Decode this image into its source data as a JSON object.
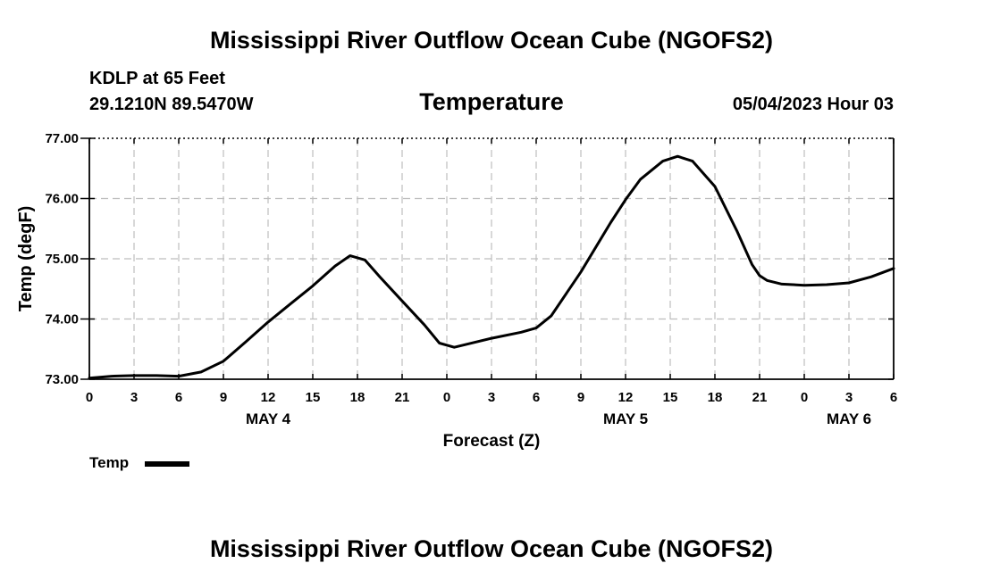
{
  "header": {
    "title": "Mississippi River Outflow Ocean Cube (NGOFS2)",
    "station_name": "KDLP at 65 Feet",
    "station_coords": "29.1210N  89.5470W",
    "date_hour": "05/04/2023 Hour 03"
  },
  "footer": {
    "title": "Mississippi River Outflow Ocean Cube (NGOFS2)"
  },
  "chart_data": {
    "type": "line",
    "title": "Temperature",
    "xlabel": "Forecast (Z)",
    "ylabel": "Temp (degF)",
    "xlim": [
      0,
      54
    ],
    "ylim": [
      73.0,
      77.0
    ],
    "x_tick_values": [
      0,
      3,
      6,
      9,
      12,
      15,
      18,
      21,
      24,
      27,
      30,
      33,
      36,
      39,
      42,
      45,
      48,
      51,
      54
    ],
    "x_tick_labels": [
      "0",
      "3",
      "6",
      "9",
      "12",
      "15",
      "18",
      "21",
      "0",
      "3",
      "6",
      "9",
      "12",
      "15",
      "18",
      "21",
      "0",
      "3",
      "6"
    ],
    "y_tick_values": [
      73.0,
      74.0,
      75.0,
      76.0,
      77.0
    ],
    "y_tick_labels": [
      "73.00",
      "74.00",
      "75.00",
      "76.00",
      "77.00"
    ],
    "date_labels": [
      {
        "label": "MAY 4",
        "x": 12
      },
      {
        "label": "MAY 5",
        "x": 36
      },
      {
        "label": "MAY 6",
        "x": 51
      }
    ],
    "grid": true,
    "legend": [
      {
        "name": "Temp",
        "color": "#000000",
        "position": "below-left"
      }
    ],
    "series": [
      {
        "name": "Temp",
        "color": "#000000",
        "x": [
          0,
          1.5,
          3,
          4.5,
          6,
          7.5,
          9,
          10.5,
          12,
          13.5,
          15,
          16.5,
          17.5,
          18.5,
          19.5,
          21,
          22.5,
          23.5,
          24.5,
          27,
          29,
          30,
          31,
          33,
          35,
          36,
          37,
          38.5,
          39.5,
          40.5,
          42,
          43.5,
          44.5,
          45,
          45.5,
          46.5,
          48,
          49.5,
          51,
          52.5,
          54
        ],
        "values": [
          73.02,
          73.05,
          73.06,
          73.06,
          73.05,
          73.12,
          73.3,
          73.62,
          73.95,
          74.25,
          74.55,
          74.88,
          75.05,
          74.98,
          74.7,
          74.3,
          73.9,
          73.6,
          73.53,
          73.68,
          73.78,
          73.85,
          74.05,
          74.78,
          75.6,
          75.98,
          76.32,
          76.62,
          76.7,
          76.62,
          76.2,
          75.45,
          74.9,
          74.72,
          74.64,
          74.58,
          74.56,
          74.57,
          74.6,
          74.7,
          74.84
        ]
      }
    ]
  }
}
